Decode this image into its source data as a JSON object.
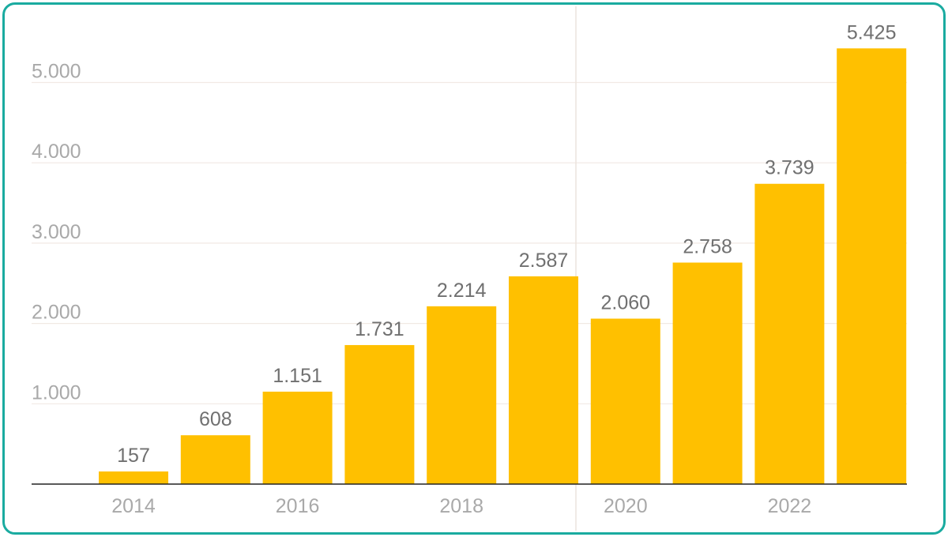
{
  "chart_data": {
    "type": "bar",
    "categories": [
      "2014",
      "2015",
      "2016",
      "2017",
      "2018",
      "2019",
      "2020",
      "2021",
      "2022",
      "2023"
    ],
    "values": [
      157,
      608,
      1151,
      1731,
      2214,
      2587,
      2060,
      2758,
      3739,
      5425
    ],
    "value_labels": [
      "157",
      "608",
      "1.151",
      "1.731",
      "2.214",
      "2.587",
      "2.060",
      "2.758",
      "3.739",
      "5.425"
    ],
    "x_tick_labels": [
      {
        "category": "2014",
        "label": "2014"
      },
      {
        "category": "2016",
        "label": "2016"
      },
      {
        "category": "2018",
        "label": "2018"
      },
      {
        "category": "2020",
        "label": "2020"
      },
      {
        "category": "2022",
        "label": "2022"
      }
    ],
    "y_ticks": [
      {
        "value": 1000,
        "label": "1.000"
      },
      {
        "value": 2000,
        "label": "2.000"
      },
      {
        "value": 3000,
        "label": "3.000"
      },
      {
        "value": 4000,
        "label": "4.000"
      },
      {
        "value": 5000,
        "label": "5.000"
      }
    ],
    "ylim": [
      0,
      5000
    ],
    "title": "",
    "xlabel": "",
    "ylabel": "",
    "grid": true,
    "legend": "none",
    "bar_color": "#ffc000",
    "frame_color": "#1aaba0"
  }
}
